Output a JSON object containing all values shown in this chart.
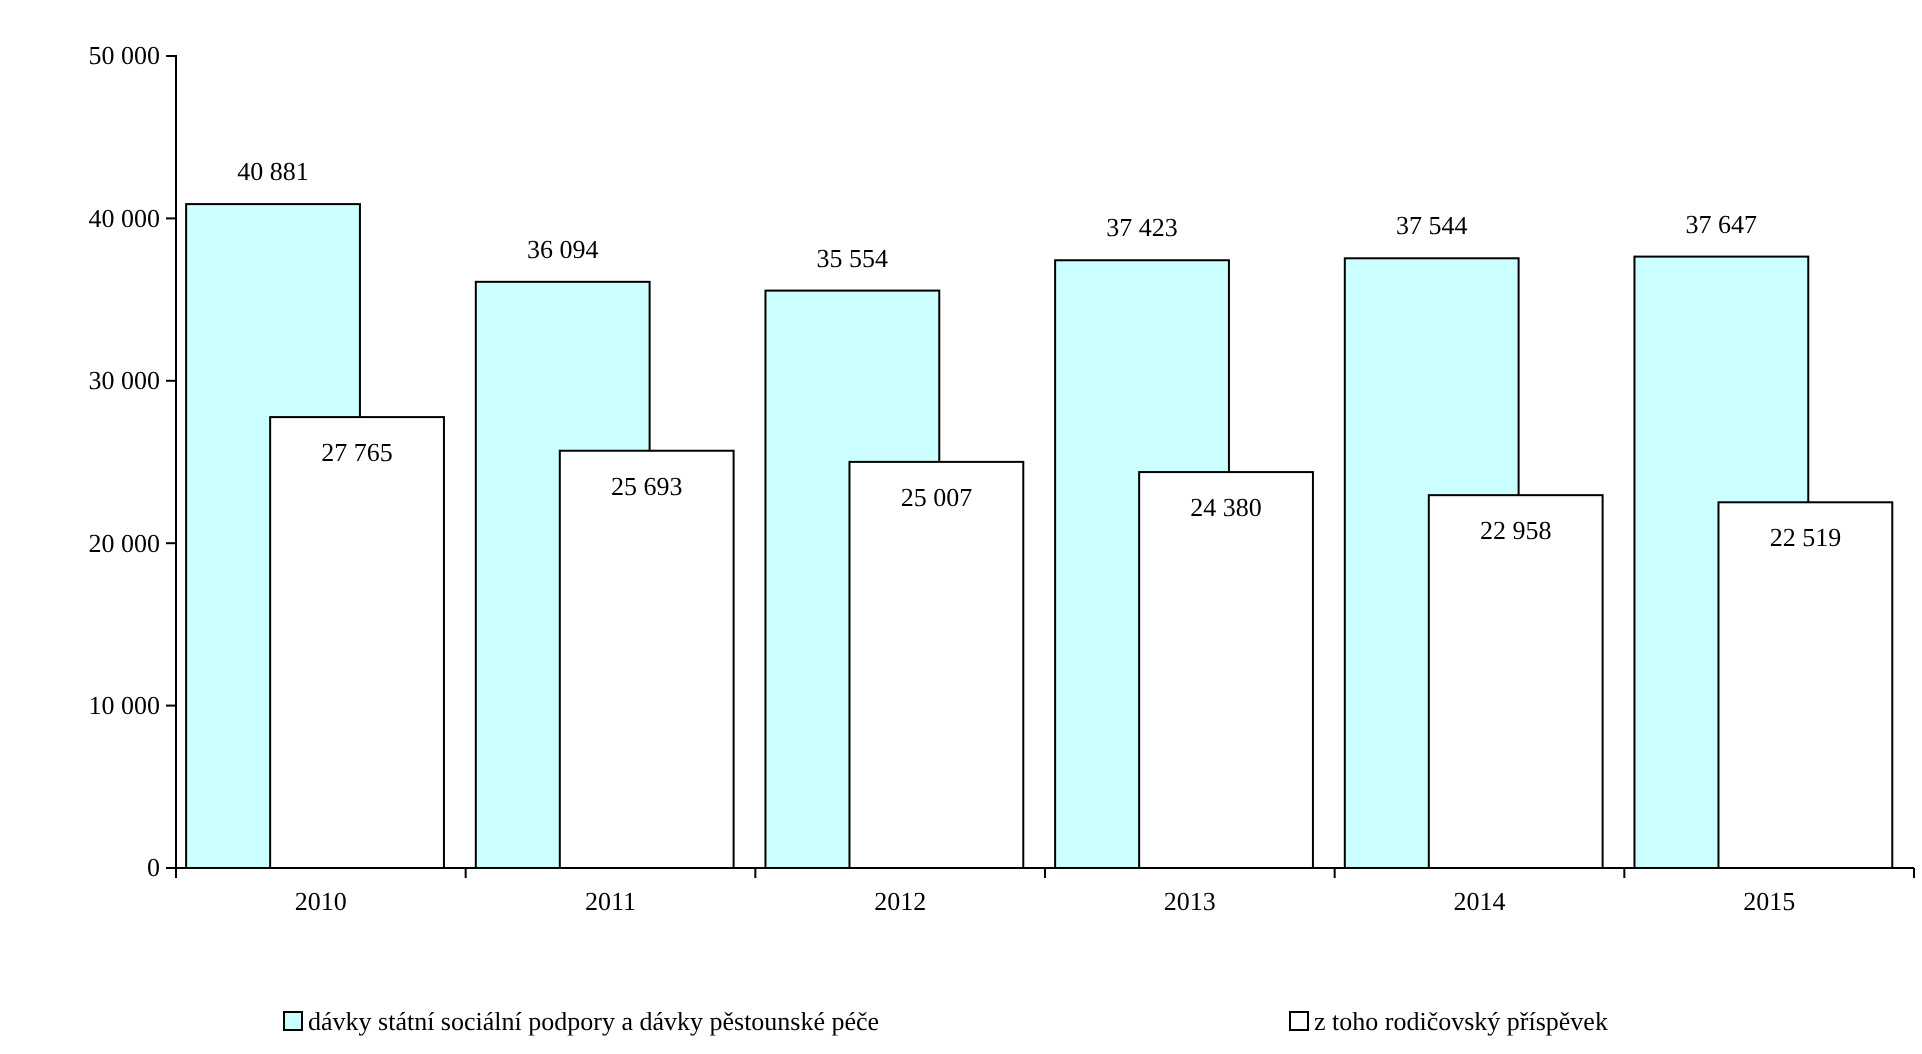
{
  "chart_data": {
    "type": "bar",
    "categories": [
      "2010",
      "2011",
      "2012",
      "2013",
      "2014",
      "2015"
    ],
    "series": [
      {
        "name": "dávky státní sociální podpory a dávky pěstounské péče",
        "color": "#ccffff",
        "values": [
          40881,
          36094,
          35554,
          37423,
          37544,
          37647
        ]
      },
      {
        "name": "z toho rodičovský příspěvek",
        "color": "#ffffff",
        "values": [
          27765,
          25693,
          25007,
          24380,
          22958,
          22519
        ]
      }
    ],
    "ylim": [
      0,
      50000
    ],
    "yticks": [
      {
        "value": 0,
        "label": "0"
      },
      {
        "value": 10000,
        "label": "10 000"
      },
      {
        "value": 20000,
        "label": "20 000"
      },
      {
        "value": 30000,
        "label": "30 000"
      },
      {
        "value": 40000,
        "label": "40 000"
      },
      {
        "value": 50000,
        "label": "50 000"
      }
    ],
    "value_labels": [
      [
        "40 881",
        "36 094",
        "35 554",
        "37 423",
        "37 544",
        "37 647"
      ],
      [
        "27 765",
        "25 693",
        "25 007",
        "24 380",
        "22 958",
        "22 519"
      ]
    ],
    "grid": false,
    "legend": "bottom"
  }
}
